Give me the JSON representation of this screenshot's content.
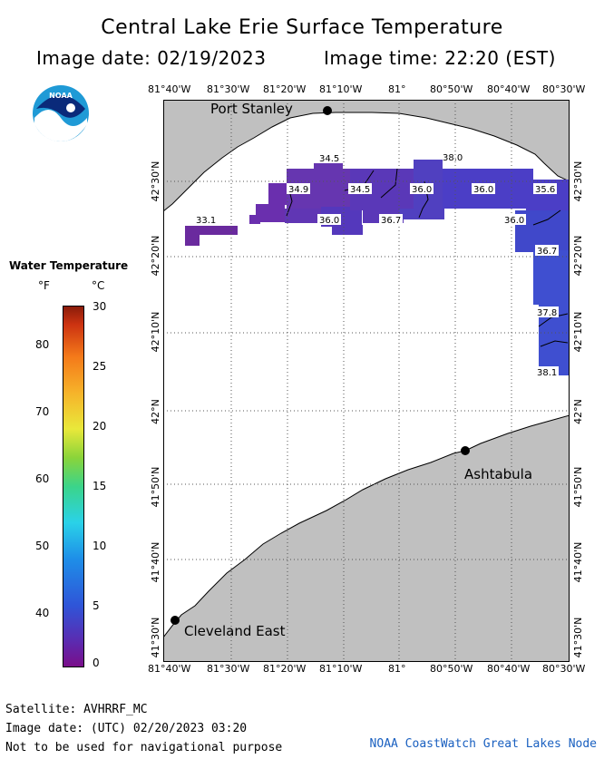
{
  "title": "Central Lake Erie Surface Temperature",
  "image_date": "Image date: 02/19/2023",
  "image_time": "Image time: 22:20 (EST)",
  "lon_ticks": [
    "81°40'W",
    "81°30'W",
    "81°20'W",
    "81°10'W",
    "81°",
    "80°50'W",
    "80°40'W",
    "80°30'W"
  ],
  "lat_ticks": [
    "42°30'N",
    "42°20'N",
    "42°10'N",
    "42°N",
    "41°50'N",
    "41°40'N",
    "41°30'N"
  ],
  "places": {
    "port_stanley": "Port Stanley",
    "ashtabula": "Ashtabula",
    "cleveland_east": "Cleveland East"
  },
  "contour_labels": [
    "34.5",
    "38.0",
    "34.9",
    "34.5",
    "36.0",
    "36.0",
    "35.6",
    "33.1",
    "36.0",
    "36.7",
    "36.0",
    "36.7",
    "37.8",
    "38.1"
  ],
  "legend": {
    "title": "Water Temperature",
    "unit_f": "°F",
    "unit_c": "°C",
    "f_ticks": [
      "80",
      "70",
      "60",
      "50",
      "40"
    ],
    "c_ticks": [
      "30",
      "25",
      "20",
      "15",
      "10",
      "5",
      "0"
    ]
  },
  "footer": {
    "satellite": "Satellite: AVHRRF_MC",
    "utc_date": "Image date: (UTC) 02/20/2023  03:20",
    "disclaimer": "Not to be used for navigational purpose",
    "credit": "NOAA CoastWatch Great Lakes Node"
  },
  "logo_text": "NOAA",
  "colors": {
    "land": "#c0c0c0",
    "water": "#ffffff",
    "sst_purple": "#6a2fae",
    "sst_indigo": "#4b3fc6",
    "sst_blue": "#3f4fd0",
    "credit_blue": "#1a60c0"
  }
}
